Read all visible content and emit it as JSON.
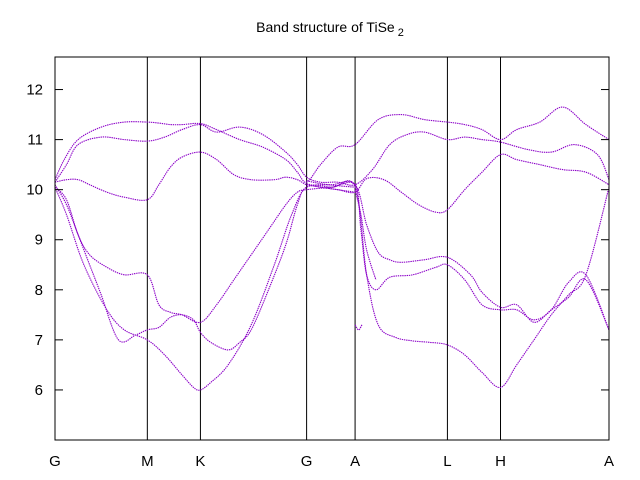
{
  "chart_data": {
    "type": "line",
    "title": "Band structure of TiSe",
    "title_subscript": "2",
    "xlabel": "",
    "ylabel": "",
    "ylim": [
      5,
      12.65
    ],
    "yticks": [
      6,
      7,
      8,
      9,
      10,
      11,
      12
    ],
    "xlim": [
      0,
      4.8
    ],
    "xticks": [
      {
        "label": "G",
        "x": 0
      },
      {
        "label": "M",
        "x": 0.8
      },
      {
        "label": "K",
        "x": 1.26
      },
      {
        "label": "G",
        "x": 2.18
      },
      {
        "label": "A",
        "x": 2.6
      },
      {
        "label": "L",
        "x": 3.4
      },
      {
        "label": "H",
        "x": 3.86
      },
      {
        "label": "A",
        "x": 4.8
      }
    ],
    "grid": false,
    "legend": "none",
    "line_color": "#8b00c8",
    "series": [
      {
        "x": [
          0,
          0.08,
          0.2,
          0.4,
          0.6,
          0.8,
          0.9,
          1.0,
          1.1,
          1.26,
          1.4,
          1.6,
          1.8,
          2.0,
          2.1,
          2.18,
          2.3,
          2.45,
          2.6,
          2.8,
          3.0,
          3.2,
          3.4,
          3.55,
          3.7,
          3.86,
          4.0,
          4.2,
          4.4,
          4.6,
          4.8
        ],
        "y": [
          10.2,
          10.6,
          11.0,
          11.25,
          11.35,
          11.35,
          11.33,
          11.3,
          11.3,
          11.32,
          11.2,
          11.0,
          10.85,
          10.6,
          10.35,
          10.15,
          10.5,
          10.85,
          10.9,
          11.4,
          11.5,
          11.4,
          11.35,
          11.3,
          11.2,
          11.0,
          11.2,
          11.35,
          11.65,
          11.3,
          11.0
        ]
      },
      {
        "x": [
          0,
          0.1,
          0.2,
          0.4,
          0.6,
          0.8,
          0.95,
          1.1,
          1.26,
          1.4,
          1.6,
          1.8,
          2.0,
          2.1,
          2.18,
          2.3,
          2.45,
          2.6,
          2.75,
          2.9,
          3.05,
          3.2,
          3.4,
          3.55,
          3.7,
          3.86,
          4.1,
          4.3,
          4.5,
          4.7,
          4.8
        ],
        "y": [
          10.15,
          10.5,
          10.9,
          11.05,
          11.0,
          10.97,
          11.05,
          11.2,
          11.3,
          11.15,
          11.25,
          11.1,
          10.75,
          10.5,
          10.25,
          10.15,
          10.15,
          10.1,
          10.4,
          10.9,
          11.1,
          11.15,
          11.0,
          11.05,
          11.0,
          10.95,
          10.8,
          10.75,
          10.9,
          10.7,
          10.2
        ]
      },
      {
        "x": [
          0,
          0.1,
          0.2,
          0.3,
          0.45,
          0.6,
          0.8,
          0.9,
          1.0,
          1.1,
          1.26,
          1.4,
          1.55,
          1.7,
          1.9,
          2.0,
          2.1,
          2.18,
          2.3,
          2.45,
          2.6,
          2.7,
          2.85,
          3.0,
          3.15,
          3.3,
          3.4,
          3.55,
          3.7,
          3.86,
          4.0,
          4.2,
          4.4,
          4.6,
          4.8
        ],
        "y": [
          10.15,
          10.2,
          10.2,
          10.1,
          9.95,
          9.85,
          9.8,
          10.1,
          10.45,
          10.65,
          10.75,
          10.6,
          10.3,
          10.2,
          10.2,
          10.25,
          10.2,
          10.1,
          10.05,
          10.0,
          9.95,
          10.22,
          10.2,
          9.95,
          9.7,
          9.55,
          9.6,
          10.0,
          10.35,
          10.7,
          10.6,
          10.5,
          10.4,
          10.35,
          10.1
        ]
      },
      {
        "x": [
          0,
          0.1,
          0.2,
          0.3,
          0.45,
          0.6,
          0.8,
          0.9,
          1.0,
          1.1,
          1.26,
          1.4,
          1.55,
          1.7,
          1.85,
          2.0,
          2.1,
          2.18,
          2.4,
          2.6,
          2.7,
          2.8,
          2.9,
          3.0,
          3.2,
          3.4,
          3.6,
          3.7,
          3.86,
          4.0,
          4.15,
          4.3,
          4.45,
          4.6,
          4.8
        ],
        "y": [
          10.05,
          9.8,
          9.1,
          8.7,
          8.45,
          8.3,
          8.3,
          7.7,
          7.55,
          7.5,
          7.35,
          7.7,
          8.2,
          8.7,
          9.2,
          9.7,
          9.95,
          10.0,
          10.05,
          10.1,
          9.3,
          8.75,
          8.6,
          8.55,
          8.6,
          8.65,
          8.3,
          7.95,
          7.65,
          7.7,
          7.35,
          7.6,
          7.85,
          8.2,
          7.2
        ]
      },
      {
        "x": [
          0,
          0.1,
          0.2,
          0.3,
          0.4,
          0.55,
          0.7,
          0.8,
          0.9,
          1.0,
          1.1,
          1.2,
          1.26,
          1.35,
          1.5,
          1.6,
          1.7,
          1.85,
          2.0,
          2.1,
          2.18,
          2.4,
          2.6,
          2.65,
          2.7,
          2.78,
          2.9,
          3.1,
          3.3,
          3.4,
          3.55,
          3.7,
          3.86,
          4.0,
          4.15,
          4.3,
          4.45,
          4.6,
          4.8
        ],
        "y": [
          10.1,
          9.7,
          9.1,
          8.5,
          7.9,
          7.0,
          7.1,
          7.2,
          7.25,
          7.45,
          7.5,
          7.4,
          7.15,
          6.95,
          6.8,
          6.95,
          7.2,
          8.0,
          8.9,
          9.7,
          10.05,
          10.1,
          10.1,
          9.2,
          8.3,
          8.0,
          8.25,
          8.3,
          8.45,
          8.5,
          8.2,
          7.7,
          7.6,
          7.6,
          7.4,
          7.6,
          8.15,
          8.3,
          7.2
        ]
      },
      {
        "x": [
          0,
          0.1,
          0.25,
          0.45,
          0.6,
          0.8,
          0.95,
          1.1,
          1.2,
          1.26,
          1.35,
          1.5,
          1.7,
          1.9,
          2.05,
          2.18,
          2.4,
          2.6,
          2.7,
          2.8,
          2.95,
          3.1,
          3.25,
          3.4,
          3.55,
          3.7,
          3.86,
          4.0,
          4.15,
          4.3,
          4.45,
          4.6,
          4.8
        ],
        "y": [
          10.05,
          9.5,
          8.5,
          7.6,
          7.2,
          7.0,
          6.7,
          6.3,
          6.05,
          6.0,
          6.15,
          6.5,
          7.3,
          8.5,
          9.5,
          10.05,
          10.05,
          10.05,
          8.3,
          7.3,
          7.05,
          6.98,
          6.95,
          6.9,
          6.7,
          6.35,
          6.05,
          6.5,
          7.0,
          7.5,
          7.9,
          8.3,
          10.05
        ]
      },
      {
        "x": [
          2.18,
          2.3,
          2.45,
          2.6
        ],
        "y": [
          10.18,
          10.12,
          10.08,
          10.05
        ]
      },
      {
        "x": [
          2.18,
          2.3,
          2.45,
          2.6
        ],
        "y": [
          10.12,
          10.05,
          10.0,
          9.95
        ]
      },
      {
        "x": [
          2.6,
          2.65,
          2.7,
          2.78
        ],
        "y": [
          10.0,
          9.5,
          8.8,
          8.2
        ]
      },
      {
        "x": [
          2.6,
          2.63,
          2.66
        ],
        "y": [
          7.3,
          7.2,
          7.3
        ]
      }
    ]
  }
}
